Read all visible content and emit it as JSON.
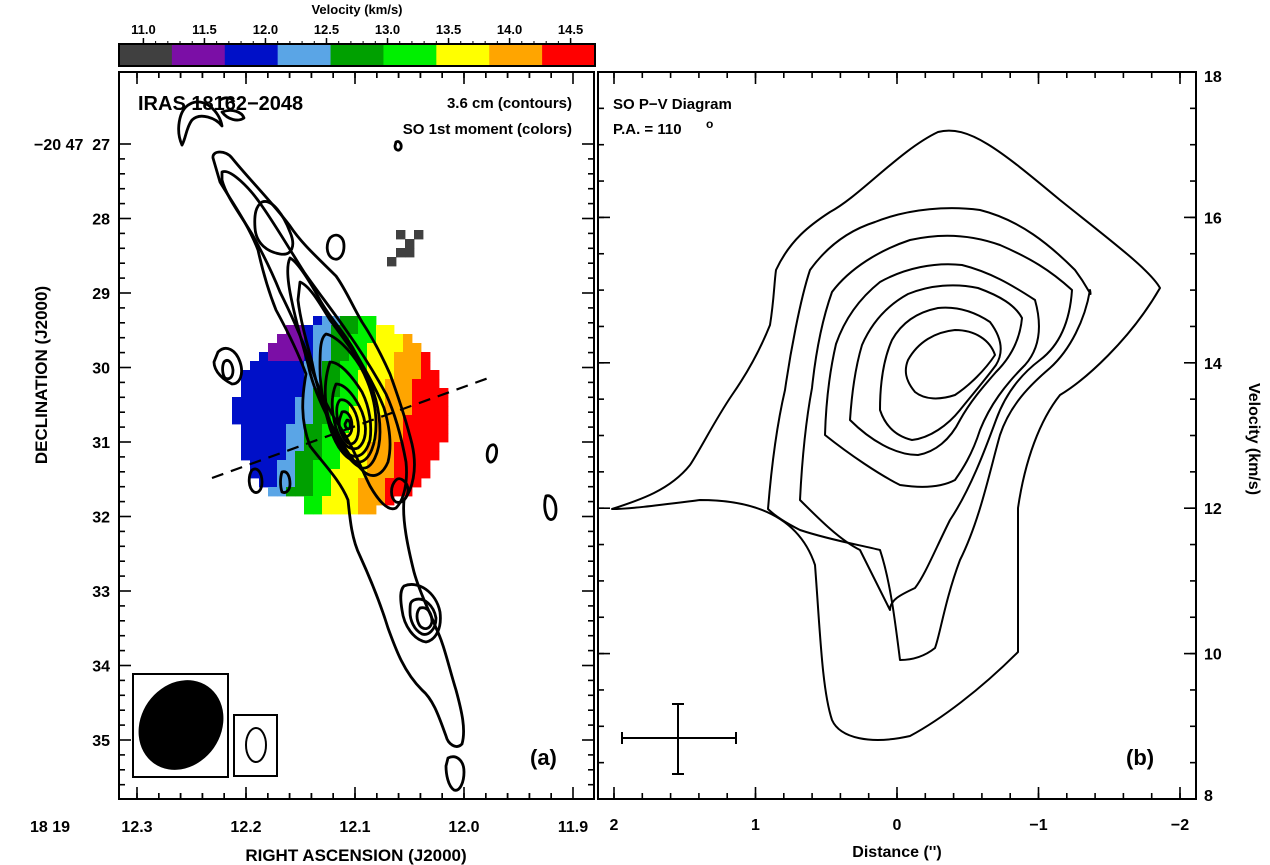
{
  "colorbar": {
    "title": "Velocity (km/s)",
    "ticks": [
      "11.0",
      "11.5",
      "12.0",
      "12.5",
      "13.0",
      "13.5",
      "14.0",
      "14.5"
    ],
    "colors": [
      "#404040",
      "#7b0ea6",
      "#0010c8",
      "#5aa5e6",
      "#00a000",
      "#00f000",
      "#ffff00",
      "#ffa500",
      "#ff0000"
    ]
  },
  "panel_a": {
    "source": "IRAS 18162−2048",
    "legend_line1": "3.6 cm (contours)",
    "legend_line2": "SO 1st moment (colors)",
    "tag": "(a)",
    "xlabel": "RIGHT ASCENSION (J2000)",
    "ylabel": "DECLINATION (J2000)",
    "x_prefix": "18 19",
    "xticks": [
      "12.3",
      "12.2",
      "12.1",
      "12.0",
      "11.9"
    ],
    "y_prefix": "−20  47",
    "yticks": [
      "27",
      "28",
      "29",
      "30",
      "31",
      "32",
      "33",
      "34",
      "35"
    ]
  },
  "panel_b": {
    "title_line1": "SO P−V Diagram",
    "title_line2": "P.A. = 110",
    "title_deg": "o",
    "tag": "(b)",
    "xlabel": "Distance ('')",
    "ylabel": "Velocity (km/s)",
    "xticks": [
      "2",
      "1",
      "0",
      "−1",
      "−2"
    ],
    "yticks": [
      "18",
      "16",
      "14",
      "12",
      "10",
      "8"
    ]
  },
  "chart_data": [
    {
      "type": "heatmap",
      "title": "",
      "xlabel": "RIGHT ASCENSION (J2000)",
      "ylabel": "DECLINATION (J2000)",
      "x_ticks": [
        "12.3",
        "12.2",
        "12.1",
        "12.0",
        "11.9"
      ],
      "y_ticks": [
        "27",
        "28",
        "29",
        "30",
        "31",
        "32",
        "33",
        "34",
        "35"
      ],
      "colorbar_label": "Velocity (km/s)",
      "colorbar_range": [
        10.8,
        14.7
      ],
      "colorbar_ticks": [
        11.0,
        11.5,
        12.0,
        12.5,
        13.0,
        13.5,
        14.0,
        14.5
      ]
    },
    {
      "type": "line",
      "title": "SO P−V Diagram",
      "xlabel": "Distance ('')",
      "ylabel": "Velocity (km/s)",
      "xlim": [
        2,
        -2
      ],
      "ylim": [
        8,
        18
      ],
      "x_ticks": [
        2,
        1,
        0,
        -1,
        -2
      ],
      "y_ticks": [
        8,
        10,
        12,
        14,
        16,
        18
      ],
      "peak": {
        "x": -0.3,
        "y": 14.0
      }
    }
  ]
}
